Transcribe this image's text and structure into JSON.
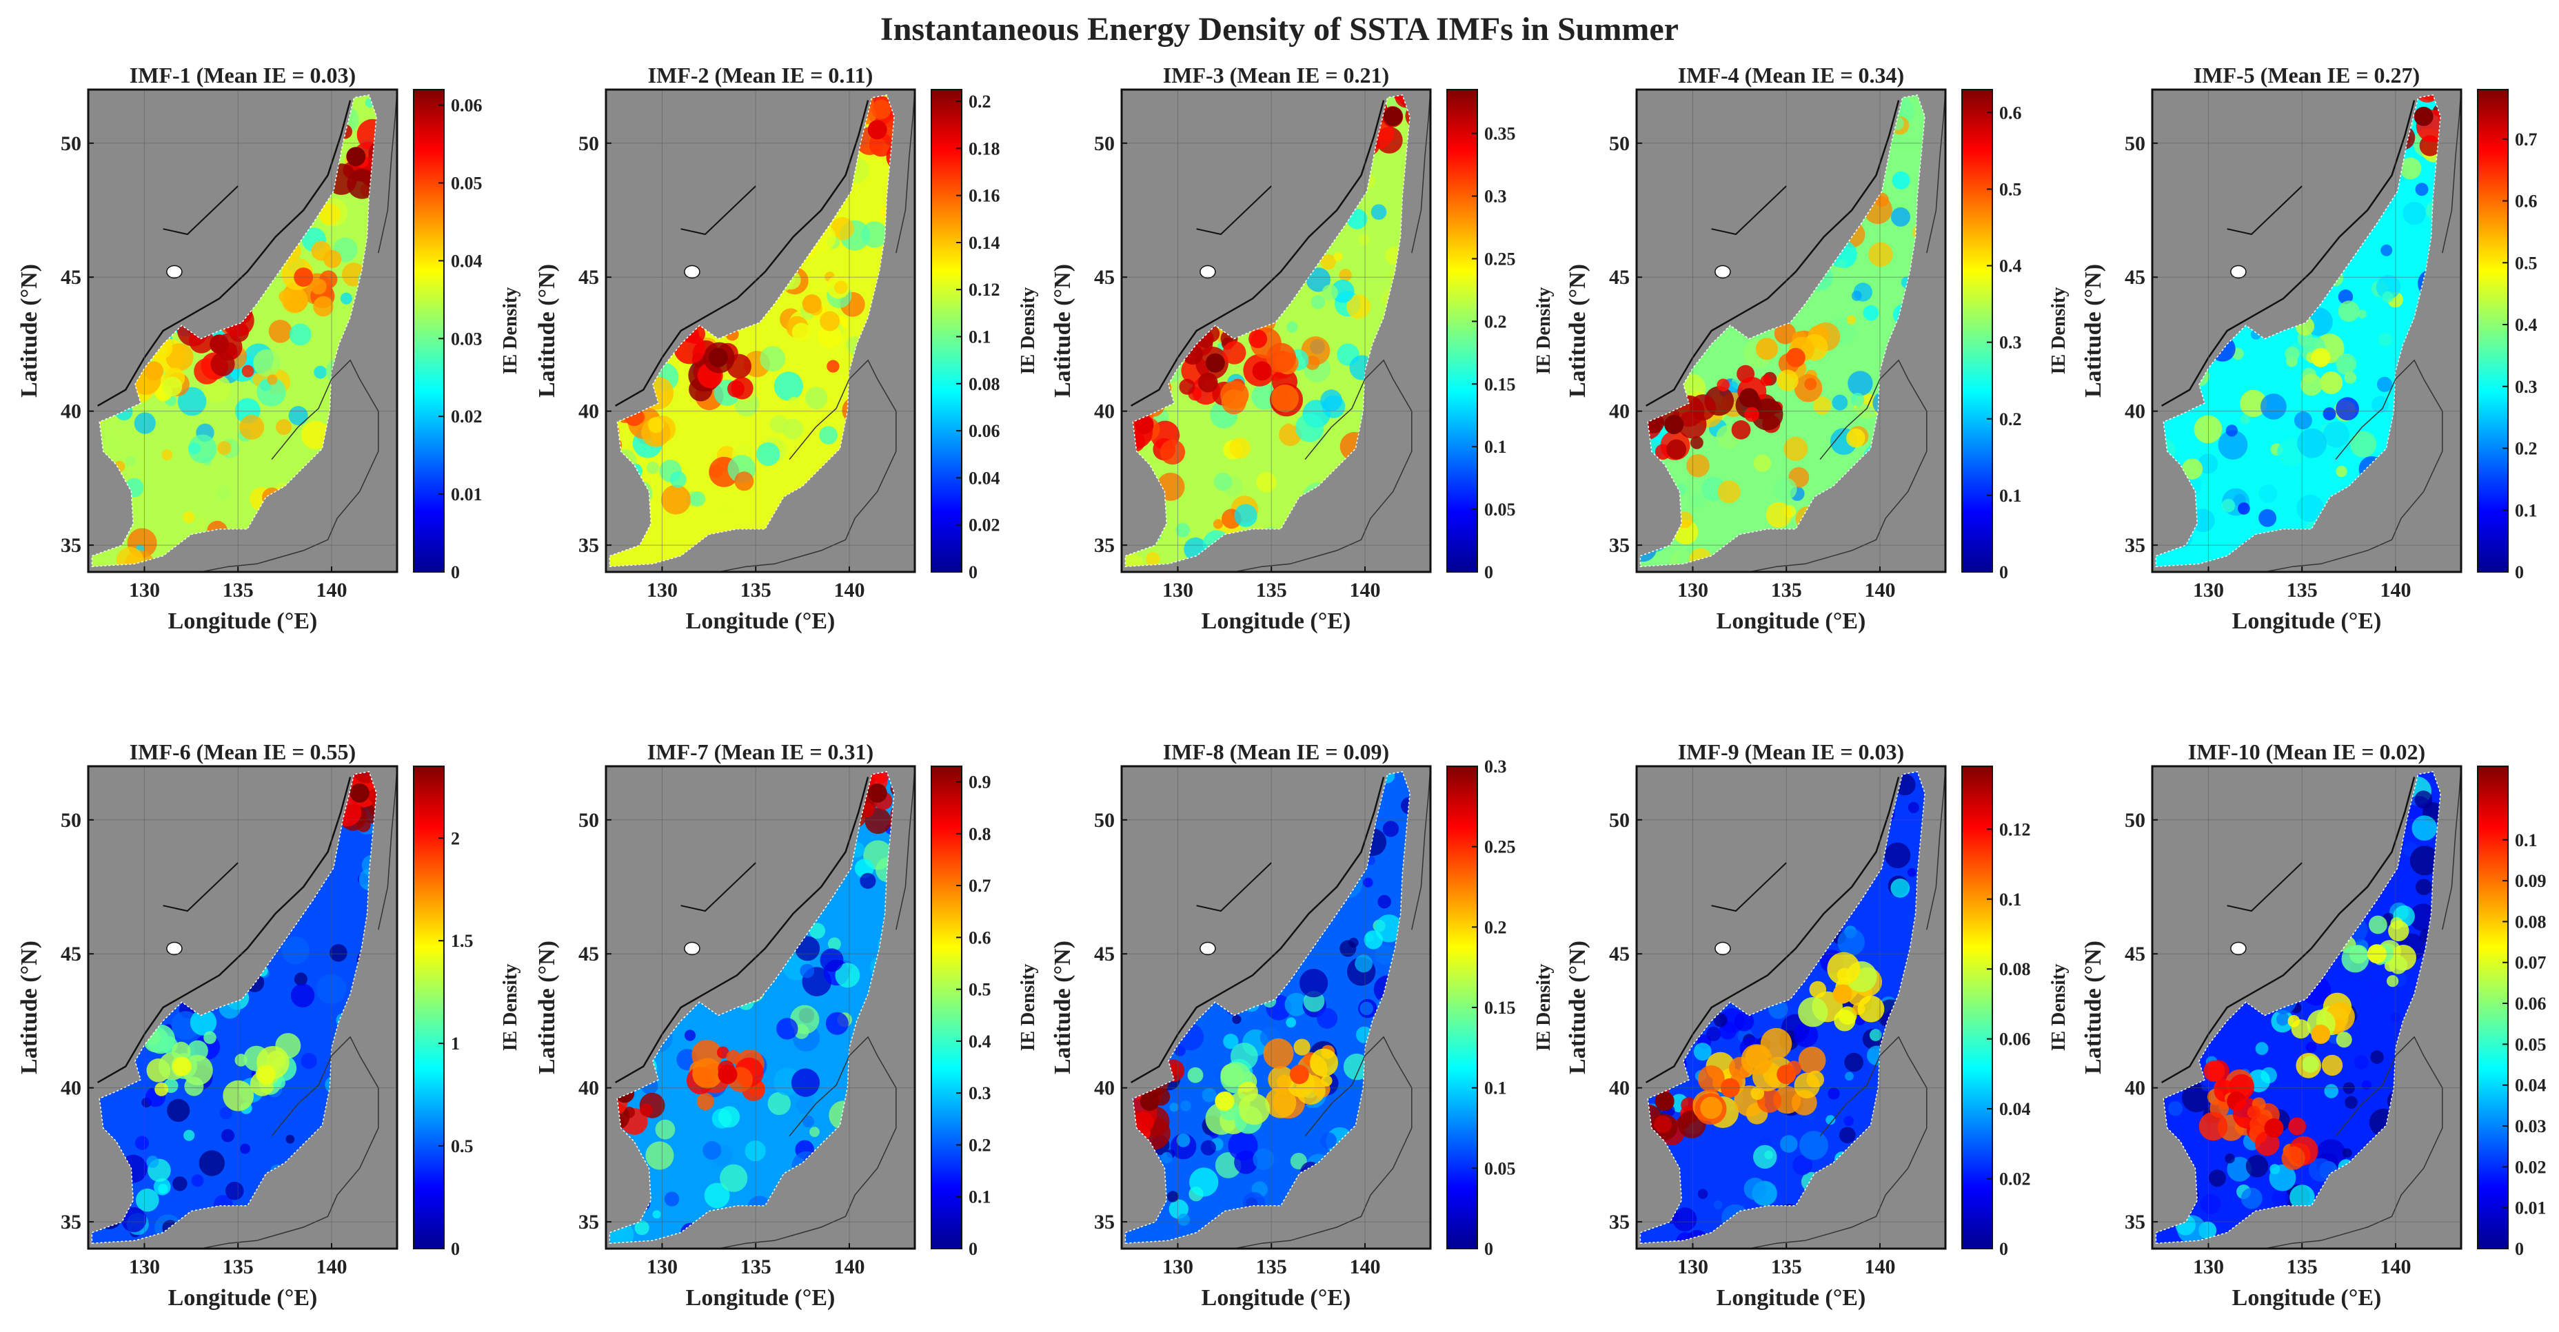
{
  "figure": {
    "title": "Instantaneous Energy Density of SSTA IMFs in Summer"
  },
  "chart_data": [
    {
      "type": "heatmap",
      "title": "IMF-1 (Mean IE = 0.03)",
      "xlabel": "Longitude (°E)",
      "ylabel": "Latitude (°N)",
      "colorbar_label": "IE Density",
      "xlim": [
        127,
        143.5
      ],
      "ylim": [
        34,
        52
      ],
      "xticks": [
        "130",
        "135",
        "140"
      ],
      "yticks": [
        "35",
        "40",
        "45",
        "50"
      ],
      "clim": [
        0,
        0.062
      ],
      "cticks": [
        "0",
        "0.01",
        "0.02",
        "0.03",
        "0.04",
        "0.05",
        "0.06"
      ],
      "intensity": 0.55,
      "hotspots": [
        {
          "lon": 134,
          "lat": 42.5,
          "v": 0.95
        },
        {
          "lon": 138.5,
          "lat": 45,
          "v": 0.8
        },
        {
          "lon": 141.3,
          "lat": 49.5,
          "v": 1.0
        },
        {
          "lon": 130.5,
          "lat": 41.5,
          "v": 0.7
        }
      ]
    },
    {
      "type": "heatmap",
      "title": "IMF-2 (Mean IE = 0.11)",
      "xlabel": "Longitude (°E)",
      "ylabel": "Latitude (°N)",
      "colorbar_label": "IE Density",
      "xlim": [
        127,
        143.5
      ],
      "ylim": [
        34,
        52
      ],
      "xticks": [
        "130",
        "135",
        "140"
      ],
      "yticks": [
        "35",
        "40",
        "45",
        "50"
      ],
      "clim": [
        0,
        0.205
      ],
      "cticks": [
        "0",
        "0.02",
        "0.04",
        "0.06",
        "0.08",
        "0.1",
        "0.12",
        "0.14",
        "0.16",
        "0.18",
        "0.2"
      ],
      "intensity": 0.6,
      "hotspots": [
        {
          "lon": 133,
          "lat": 42,
          "v": 1.0
        },
        {
          "lon": 128.5,
          "lat": 39.8,
          "v": 0.8
        },
        {
          "lon": 141.5,
          "lat": 50.5,
          "v": 0.9
        },
        {
          "lon": 138,
          "lat": 44,
          "v": 0.7
        }
      ]
    },
    {
      "type": "heatmap",
      "title": "IMF-3 (Mean IE = 0.21)",
      "xlabel": "Longitude (°E)",
      "ylabel": "Latitude (°N)",
      "colorbar_label": "IE Density",
      "xlim": [
        127,
        143.5
      ],
      "ylim": [
        34,
        52
      ],
      "xticks": [
        "130",
        "135",
        "140"
      ],
      "yticks": [
        "35",
        "40",
        "45",
        "50"
      ],
      "clim": [
        0,
        0.385
      ],
      "cticks": [
        "0",
        "0.05",
        "0.1",
        "0.15",
        "0.2",
        "0.25",
        "0.3",
        "0.35"
      ],
      "intensity": 0.55,
      "hotspots": [
        {
          "lon": 132,
          "lat": 41.8,
          "v": 1.0
        },
        {
          "lon": 134.5,
          "lat": 41.5,
          "v": 0.9
        },
        {
          "lon": 128.2,
          "lat": 39.5,
          "v": 0.9
        },
        {
          "lon": 141.5,
          "lat": 51,
          "v": 1.0
        }
      ]
    },
    {
      "type": "heatmap",
      "title": "IMF-4 (Mean IE = 0.34)",
      "xlabel": "Longitude (°E)",
      "ylabel": "Latitude (°N)",
      "colorbar_label": "IE Density",
      "xlim": [
        127,
        143.5
      ],
      "ylim": [
        34,
        52
      ],
      "xticks": [
        "130",
        "135",
        "140"
      ],
      "yticks": [
        "35",
        "40",
        "45",
        "50"
      ],
      "clim": [
        0,
        0.63
      ],
      "cticks": [
        "0",
        "0.1",
        "0.2",
        "0.3",
        "0.4",
        "0.5",
        "0.6"
      ],
      "intensity": 0.5,
      "hotspots": [
        {
          "lon": 133,
          "lat": 40.5,
          "v": 1.0
        },
        {
          "lon": 129,
          "lat": 39.5,
          "v": 1.0
        },
        {
          "lon": 135.5,
          "lat": 42,
          "v": 0.8
        }
      ]
    },
    {
      "type": "heatmap",
      "title": "IMF-5 (Mean IE = 0.27)",
      "xlabel": "Longitude (°E)",
      "ylabel": "Latitude (°N)",
      "colorbar_label": "IE Density",
      "xlim": [
        127,
        143.5
      ],
      "ylim": [
        34,
        52
      ],
      "xticks": [
        "130",
        "135",
        "140"
      ],
      "yticks": [
        "35",
        "40",
        "45",
        "50"
      ],
      "clim": [
        0,
        0.78
      ],
      "cticks": [
        "0",
        "0.1",
        "0.2",
        "0.3",
        "0.4",
        "0.5",
        "0.6",
        "0.7"
      ],
      "intensity": 0.38,
      "hotspots": [
        {
          "lon": 141.5,
          "lat": 51,
          "v": 1.0
        },
        {
          "lon": 136,
          "lat": 42,
          "v": 0.6
        }
      ]
    },
    {
      "type": "heatmap",
      "title": "IMF-6 (Mean IE = 0.55)",
      "xlabel": "Longitude (°E)",
      "ylabel": "Latitude (°N)",
      "colorbar_label": "IE Density",
      "xlim": [
        127,
        143.5
      ],
      "ylim": [
        34,
        52
      ],
      "xticks": [
        "130",
        "135",
        "140"
      ],
      "yticks": [
        "35",
        "40",
        "45",
        "50"
      ],
      "clim": [
        0,
        2.35
      ],
      "cticks": [
        "0",
        "0.5",
        "1",
        "1.5",
        "2"
      ],
      "intensity": 0.2,
      "hotspots": [
        {
          "lon": 141.5,
          "lat": 51,
          "v": 1.0
        },
        {
          "lon": 132,
          "lat": 40.8,
          "v": 0.6
        },
        {
          "lon": 136.5,
          "lat": 40.5,
          "v": 0.6
        }
      ]
    },
    {
      "type": "heatmap",
      "title": "IMF-7 (Mean IE = 0.31)",
      "xlabel": "Longitude (°E)",
      "ylabel": "Latitude (°N)",
      "colorbar_label": "IE Density",
      "xlim": [
        127,
        143.5
      ],
      "ylim": [
        34,
        52
      ],
      "xticks": [
        "130",
        "135",
        "140"
      ],
      "yticks": [
        "35",
        "40",
        "45",
        "50"
      ],
      "clim": [
        0,
        0.93
      ],
      "cticks": [
        "0",
        "0.1",
        "0.2",
        "0.3",
        "0.4",
        "0.5",
        "0.6",
        "0.7",
        "0.8",
        "0.9"
      ],
      "intensity": 0.28,
      "hotspots": [
        {
          "lon": 128,
          "lat": 39.8,
          "v": 1.0
        },
        {
          "lon": 133.5,
          "lat": 40.5,
          "v": 0.9
        },
        {
          "lon": 141.5,
          "lat": 51,
          "v": 1.0
        }
      ]
    },
    {
      "type": "heatmap",
      "title": "IMF-8 (Mean IE = 0.09)",
      "xlabel": "Longitude (°E)",
      "ylabel": "Latitude (°N)",
      "colorbar_label": "IE Density",
      "xlim": [
        127,
        143.5
      ],
      "ylim": [
        34,
        52
      ],
      "xticks": [
        "130",
        "135",
        "140"
      ],
      "yticks": [
        "35",
        "40",
        "45",
        "50"
      ],
      "clim": [
        0,
        0.3
      ],
      "cticks": [
        "0",
        "0.05",
        "0.1",
        "0.15",
        "0.2",
        "0.25",
        "0.3"
      ],
      "intensity": 0.22,
      "hotspots": [
        {
          "lon": 128.5,
          "lat": 39.5,
          "v": 1.0
        },
        {
          "lon": 136.5,
          "lat": 40.5,
          "v": 0.8
        },
        {
          "lon": 132.5,
          "lat": 39.5,
          "v": 0.6
        }
      ]
    },
    {
      "type": "heatmap",
      "title": "IMF-9 (Mean IE = 0.03)",
      "xlabel": "Longitude (°E)",
      "ylabel": "Latitude (°N)",
      "colorbar_label": "IE Density",
      "xlim": [
        127,
        143.5
      ],
      "ylim": [
        34,
        52
      ],
      "xticks": [
        "130",
        "135",
        "140"
      ],
      "yticks": [
        "35",
        "40",
        "45",
        "50"
      ],
      "clim": [
        0,
        0.138
      ],
      "cticks": [
        "0",
        "0.02",
        "0.04",
        "0.06",
        "0.08",
        "0.1",
        "0.12"
      ],
      "intensity": 0.18,
      "hotspots": [
        {
          "lon": 128.5,
          "lat": 39.5,
          "v": 1.0
        },
        {
          "lon": 132,
          "lat": 40,
          "v": 0.8
        },
        {
          "lon": 135,
          "lat": 40.5,
          "v": 0.8
        },
        {
          "lon": 138,
          "lat": 43.5,
          "v": 0.7
        }
      ]
    },
    {
      "type": "heatmap",
      "title": "IMF-10 (Mean IE = 0.02)",
      "xlabel": "Longitude (°E)",
      "ylabel": "Latitude (°N)",
      "colorbar_label": "IE Density",
      "xlim": [
        127,
        143.5
      ],
      "ylim": [
        34,
        52
      ],
      "xticks": [
        "130",
        "135",
        "140"
      ],
      "yticks": [
        "35",
        "40",
        "45",
        "50"
      ],
      "clim": [
        0,
        0.118
      ],
      "cticks": [
        "0",
        "0.01",
        "0.02",
        "0.03",
        "0.04",
        "0.05",
        "0.06",
        "0.07",
        "0.08",
        "0.09",
        "0.1"
      ],
      "intensity": 0.16,
      "hotspots": [
        {
          "lon": 131.5,
          "lat": 39.5,
          "v": 0.9
        },
        {
          "lon": 133.5,
          "lat": 38.5,
          "v": 0.9
        },
        {
          "lon": 136,
          "lat": 42,
          "v": 0.7
        },
        {
          "lon": 139,
          "lat": 45,
          "v": 0.6
        }
      ]
    }
  ]
}
